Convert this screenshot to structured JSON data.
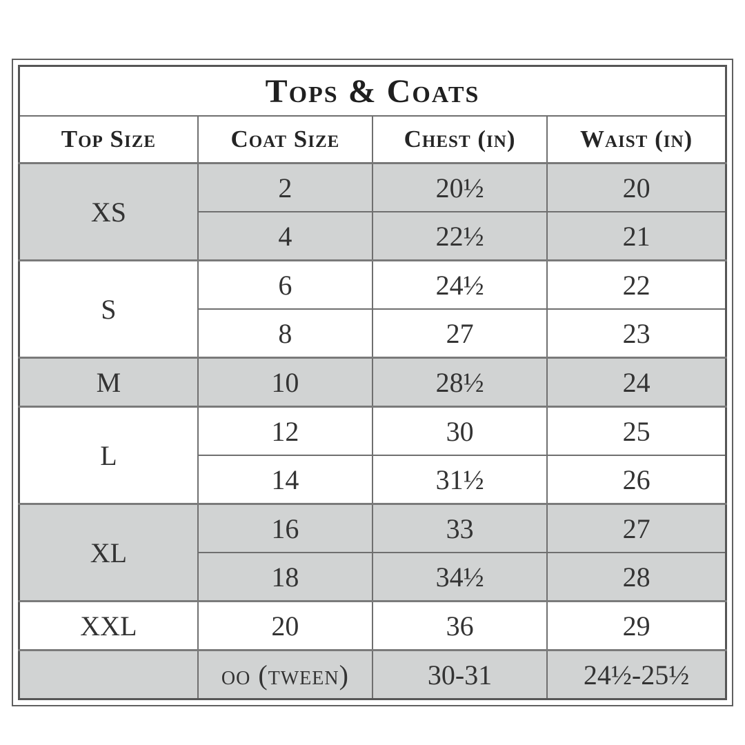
{
  "table": {
    "title": "Tops & Coats",
    "columns": [
      {
        "label": "Top Size"
      },
      {
        "label": "Coat Size"
      },
      {
        "label": "Chest (in)"
      },
      {
        "label": "Waist (in)"
      }
    ],
    "shade_color": "#d1d3d3",
    "border_color": "#6f6f6f",
    "groups": [
      {
        "top_size": "XS",
        "shaded": true,
        "rows": [
          [
            "2",
            "20½",
            "20"
          ],
          [
            "4",
            "22½",
            "21"
          ]
        ]
      },
      {
        "top_size": "S",
        "shaded": false,
        "rows": [
          [
            "6",
            "24½",
            "22"
          ],
          [
            "8",
            "27",
            "23"
          ]
        ]
      },
      {
        "top_size": "M",
        "shaded": true,
        "rows": [
          [
            "10",
            "28½",
            "24"
          ]
        ]
      },
      {
        "top_size": "L",
        "shaded": false,
        "rows": [
          [
            "12",
            "30",
            "25"
          ],
          [
            "14",
            "31½",
            "26"
          ]
        ]
      },
      {
        "top_size": "XL",
        "shaded": true,
        "rows": [
          [
            "16",
            "33",
            "27"
          ],
          [
            "18",
            "34½",
            "28"
          ]
        ]
      },
      {
        "top_size": "XXL",
        "shaded": false,
        "rows": [
          [
            "20",
            "36",
            "29"
          ]
        ]
      },
      {
        "top_size": "",
        "shaded": true,
        "rows": [
          [
            "oo (tween)",
            "30-31",
            "24½-25½"
          ]
        ]
      }
    ]
  }
}
